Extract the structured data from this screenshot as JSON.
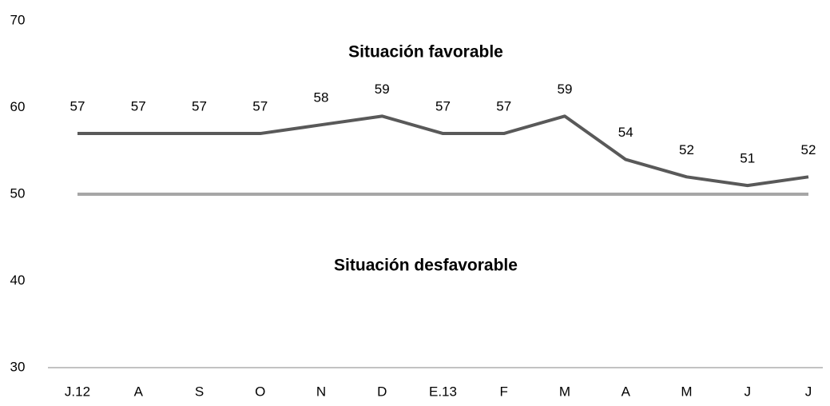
{
  "chart_data": {
    "type": "line",
    "categories": [
      "J.12",
      "A",
      "S",
      "O",
      "N",
      "D",
      "E.13",
      "F",
      "M",
      "A",
      "M",
      "J",
      "J"
    ],
    "values": [
      57,
      57,
      57,
      57,
      58,
      59,
      57,
      57,
      59,
      54,
      52,
      51,
      52
    ],
    "color": "#595959",
    "reference_line": 50,
    "reference_color": "#a6a6a6",
    "annotations": [
      "Situación favorable",
      "Situación desfavorable"
    ],
    "ylim": [
      30,
      70
    ],
    "yticks": [
      30,
      40,
      50,
      60,
      70
    ],
    "grid": false,
    "data_labels": true
  }
}
